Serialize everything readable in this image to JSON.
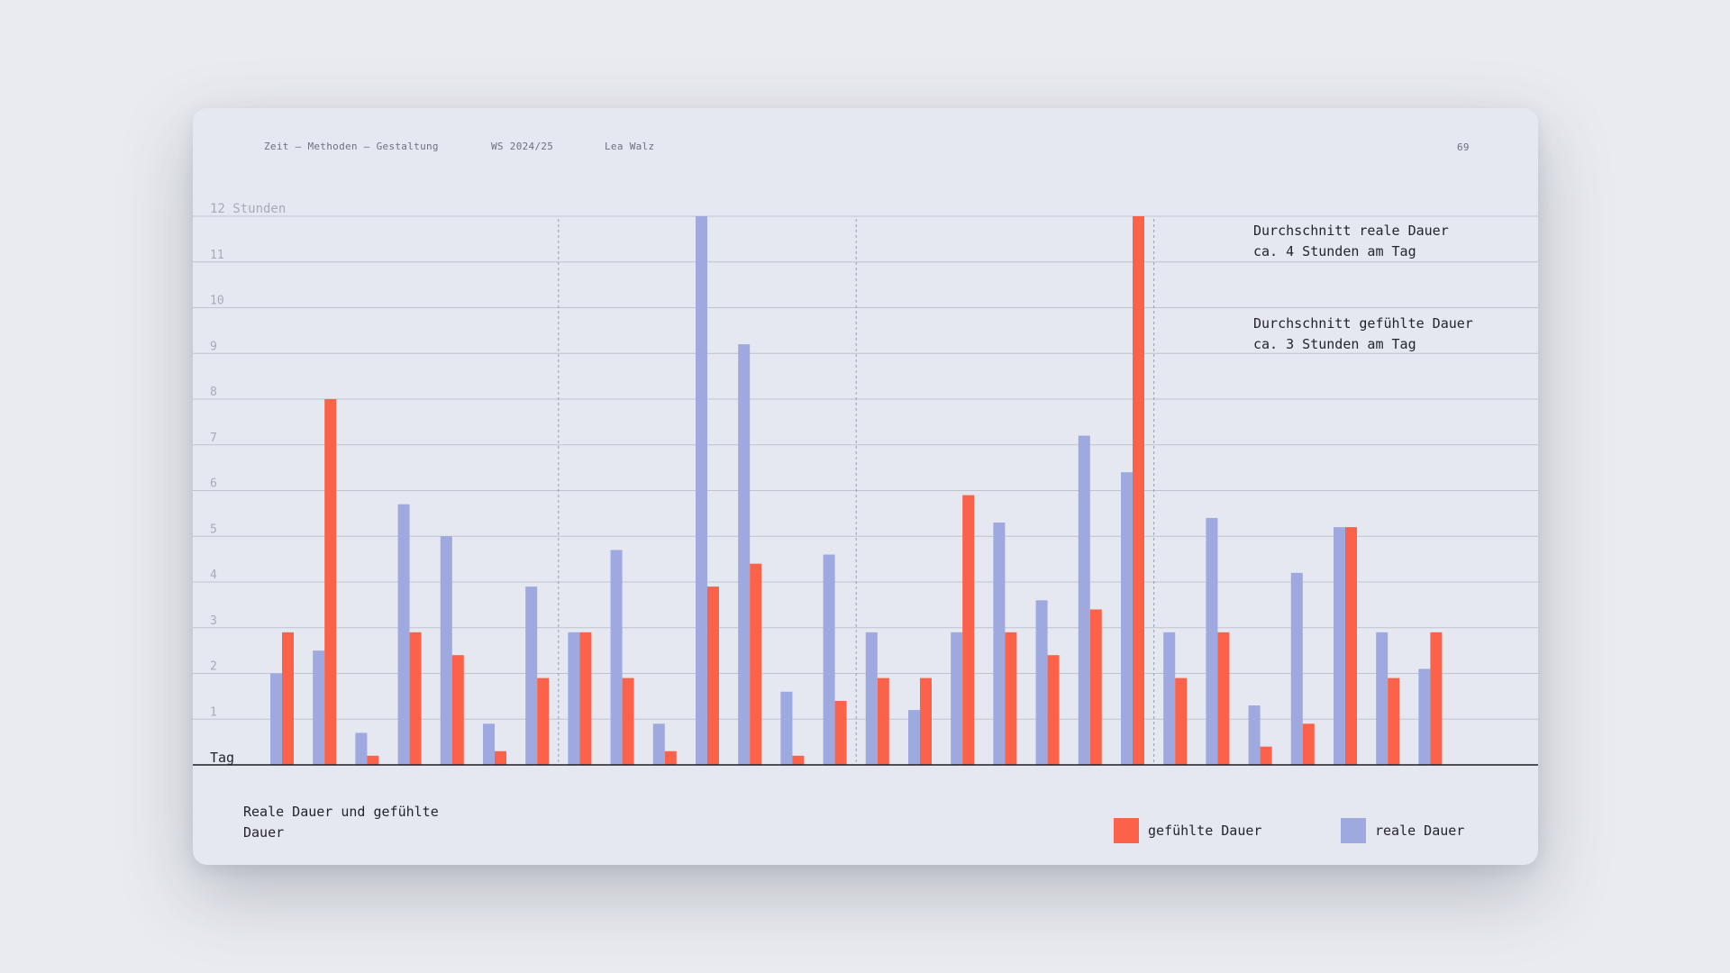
{
  "header": {
    "course": "Zeit – Methoden – Gestaltung",
    "semester": "WS 2024/25",
    "author": "Lea Walz",
    "page_number": "69"
  },
  "colors": {
    "real": "#9ea9df",
    "felt": "#fc614a",
    "grid": "#bfc3cf",
    "axis_text": "#a7abb6",
    "axis_line": "#1d1e22"
  },
  "chart_data": {
    "type": "bar",
    "title": "Reale Dauer und gefühlte Dauer",
    "xlabel": "Tag",
    "ylabel": "Stunden",
    "ylim": [
      0,
      12
    ],
    "y_ticks": [
      {
        "value": 1,
        "label": "1"
      },
      {
        "value": 2,
        "label": "2"
      },
      {
        "value": 3,
        "label": "3"
      },
      {
        "value": 4,
        "label": "4"
      },
      {
        "value": 5,
        "label": "5"
      },
      {
        "value": 6,
        "label": "6"
      },
      {
        "value": 7,
        "label": "7"
      },
      {
        "value": 8,
        "label": "8"
      },
      {
        "value": 9,
        "label": "9"
      },
      {
        "value": 10,
        "label": "10"
      },
      {
        "value": 11,
        "label": "11"
      },
      {
        "value": 12,
        "label": "12 Stunden"
      }
    ],
    "grid": true,
    "week_separators_after_day": [
      7,
      14,
      21
    ],
    "series": [
      {
        "name": "reale Dauer",
        "color_key": "real",
        "values": [
          2,
          2.5,
          0.7,
          5.7,
          5,
          0.9,
          3.9,
          2.9,
          4.7,
          0.9,
          12,
          9.2,
          1.6,
          4.6,
          2.9,
          1.2,
          2.9,
          5.3,
          3.6,
          7.2,
          6.4,
          2.9,
          5.4,
          1.3,
          4.2,
          5.2,
          2.9,
          2.1
        ]
      },
      {
        "name": "gefühlte Dauer",
        "color_key": "felt",
        "values": [
          2.9,
          8,
          0.2,
          2.9,
          2.4,
          0.3,
          1.9,
          2.9,
          1.9,
          0.3,
          3.9,
          4.4,
          0.2,
          1.4,
          1.9,
          1.9,
          5.9,
          2.9,
          2.4,
          3.4,
          12,
          1.9,
          2.9,
          0.4,
          0.9,
          5.2,
          1.9,
          2.9
        ]
      }
    ],
    "annotations": [
      "Durchschnitt reale Dauer\nca. 4 Stunden am Tag",
      "Durchschnitt gefühlte Dauer\nca. 3 Stunden am Tag"
    ]
  },
  "legend": {
    "felt_label": "gefühlte Dauer",
    "real_label": "reale Dauer"
  }
}
